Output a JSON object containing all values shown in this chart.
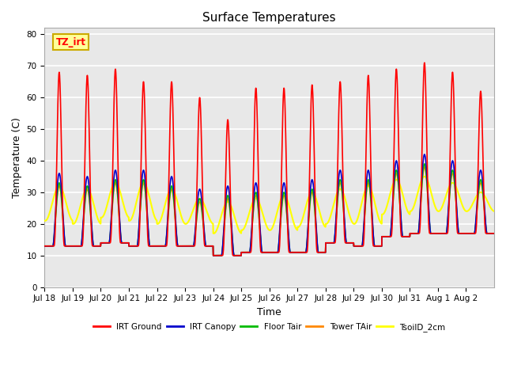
{
  "title": "Surface Temperatures",
  "xlabel": "Time",
  "ylabel": "Temperature (C)",
  "ylim": [
    0,
    82
  ],
  "yticks": [
    0,
    10,
    20,
    30,
    40,
    50,
    60,
    70,
    80
  ],
  "date_labels": [
    "Jul 18",
    "Jul 19",
    "Jul 20",
    "Jul 21",
    "Jul 22",
    "Jul 23",
    "Jul 24",
    "Jul 25",
    "Jul 26",
    "Jul 27",
    "Jul 28",
    "Jul 29",
    "Jul 30",
    "Jul 31",
    "Aug 1",
    "Aug 2"
  ],
  "n_days": 16,
  "series_order": [
    "IRT Ground",
    "IRT Canopy",
    "Floor Tair",
    "Tower TAir",
    "TsoilD_2cm"
  ],
  "series": {
    "IRT Ground": {
      "color": "#ff0000",
      "lw": 1.2
    },
    "IRT Canopy": {
      "color": "#0000cc",
      "lw": 1.2
    },
    "Floor Tair": {
      "color": "#00bb00",
      "lw": 1.2
    },
    "Tower TAir": {
      "color": "#ff8800",
      "lw": 1.2
    },
    "TsoilD_2cm": {
      "color": "#ffff00",
      "lw": 1.5
    }
  },
  "annotation_text": "TZ_irt",
  "annotation_bg": "#ffff99",
  "annotation_border": "#ccaa00",
  "bg_color": "#e8e8e8",
  "grid_color": "#ffffff",
  "title_fontsize": 11,
  "axis_fontsize": 9,
  "day_peaks_ground": [
    68,
    67,
    69,
    65,
    65,
    60,
    53,
    63,
    63,
    64,
    65,
    67,
    69,
    71,
    68,
    62
  ],
  "day_peaks_canopy": [
    36,
    35,
    37,
    37,
    35,
    31,
    32,
    33,
    33,
    34,
    37,
    37,
    40,
    42,
    40,
    37
  ],
  "day_troughs": [
    13,
    13,
    14,
    13,
    13,
    13,
    10,
    11,
    11,
    11,
    14,
    13,
    16,
    17,
    17,
    17
  ],
  "tsoil_peaks": [
    32,
    31,
    33,
    33,
    31,
    28,
    27,
    28,
    29,
    30,
    31,
    32,
    34,
    35,
    33,
    30
  ],
  "tsoil_troughs": [
    21,
    20,
    22,
    21,
    20,
    20,
    17,
    18,
    18,
    19,
    20,
    20,
    23,
    24,
    24,
    24
  ]
}
